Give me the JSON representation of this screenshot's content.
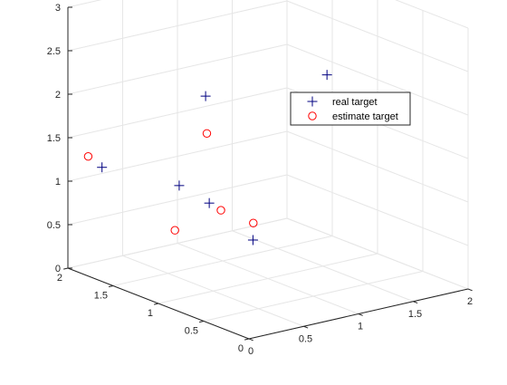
{
  "chart_data": {
    "type": "scatter",
    "title": "",
    "xlabel": "",
    "ylabel": "",
    "zlabel": "",
    "xlim": [
      0,
      2
    ],
    "ylim": [
      0,
      2
    ],
    "zlim": [
      0,
      3
    ],
    "x_ticks": [
      "0",
      "0.5",
      "1",
      "1.5",
      "2"
    ],
    "y_ticks": [
      "0",
      "0.5",
      "1",
      "1.5",
      "2"
    ],
    "z_ticks": [
      "0",
      "0.5",
      "1",
      "1.5",
      "2",
      "2.5",
      "3"
    ],
    "grid": true,
    "legend_location": "top-right",
    "series": [
      {
        "name": "real target",
        "marker": "+",
        "color": "#000080",
        "points": [
          {
            "x": 0.14,
            "y": 0.94,
            "z": 1.34
          },
          {
            "x": 0.08,
            "y": 1.72,
            "z": 1.25
          },
          {
            "x": 0.53,
            "y": 1.08,
            "z": 0.97
          },
          {
            "x": 1.1,
            "y": 1.81,
            "z": 1.74
          },
          {
            "x": 1.02,
            "y": 1.19,
            "z": 0.36
          },
          {
            "x": 1.96,
            "y": 1.51,
            "z": 1.86
          }
        ]
      },
      {
        "name": "estimate target",
        "marker": "o",
        "color": "#ff0000",
        "points": [
          {
            "x": 0.02,
            "y": 1.8,
            "z": 1.36
          },
          {
            "x": 0.2,
            "y": 1.06,
            "z": 0.76
          },
          {
            "x": 0.62,
            "y": 1.06,
            "z": 0.87
          },
          {
            "x": 1.07,
            "y": 1.76,
            "z": 1.34
          },
          {
            "x": 0.99,
            "y": 1.15,
            "z": 0.58
          },
          {
            "x": 1.94,
            "y": 1.48,
            "z": 1.51
          }
        ]
      }
    ]
  }
}
